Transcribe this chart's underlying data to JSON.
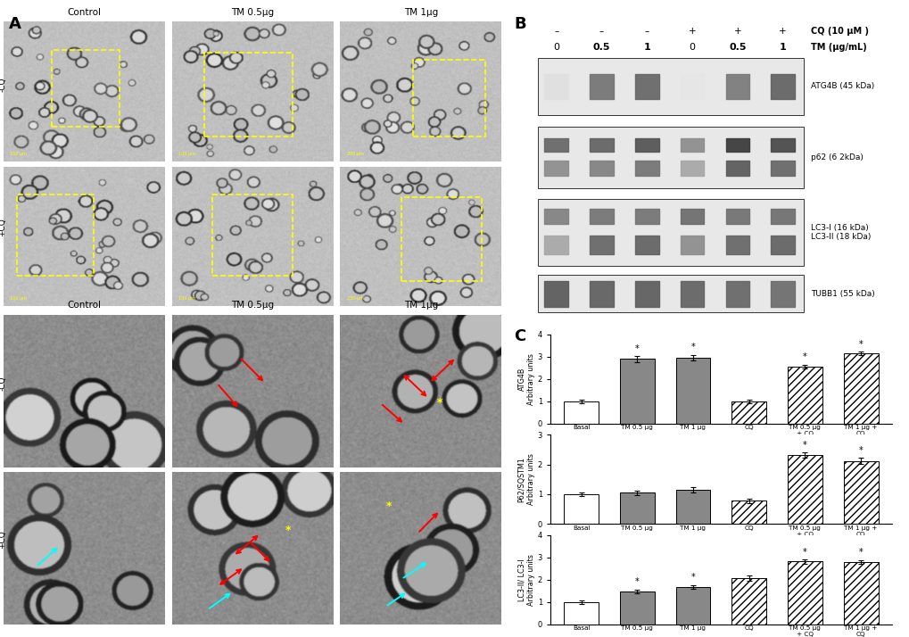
{
  "panel_labels": [
    "A",
    "B",
    "C"
  ],
  "micro_labels_top": [
    "Control",
    "TM 0.5μg",
    "TM 1μg"
  ],
  "wb_cq_row": [
    "–",
    "–",
    "–",
    "+",
    "+",
    "+"
  ],
  "wb_tm_row": [
    "0",
    "0.5",
    "1",
    "0",
    "0.5",
    "1"
  ],
  "cq_label": "CQ (10 μM )",
  "tm_label": "TM (μg/mL)",
  "atg4b_ylabel": "ATG4B\nArbitrary units",
  "p62_ylabel": "P62/SQSTM1\nArbitrary units",
  "lc3_ylabel": "LC3-II/ LC3-I\nArbitrary units",
  "atg4b_values": [
    1.0,
    2.9,
    2.95,
    1.0,
    2.55,
    3.15
  ],
  "atg4b_errors": [
    0.08,
    0.13,
    0.13,
    0.08,
    0.1,
    0.08
  ],
  "atg4b_sig": [
    false,
    true,
    true,
    false,
    true,
    true
  ],
  "p62_values": [
    1.0,
    1.05,
    1.15,
    0.78,
    2.32,
    2.12
  ],
  "p62_errors": [
    0.07,
    0.07,
    0.09,
    0.07,
    0.09,
    0.1
  ],
  "p62_sig": [
    false,
    false,
    false,
    false,
    true,
    true
  ],
  "lc3_values": [
    1.0,
    1.48,
    1.68,
    2.08,
    2.82,
    2.8
  ],
  "lc3_errors": [
    0.07,
    0.09,
    0.09,
    0.11,
    0.09,
    0.09
  ],
  "lc3_sig": [
    false,
    true,
    true,
    false,
    true,
    true
  ],
  "atg4b_ylim": [
    0,
    4
  ],
  "p62_ylim": [
    0,
    3
  ],
  "lc3_ylim": [
    0,
    4
  ],
  "bg_color": "#ffffff",
  "bar_colors": [
    "white",
    "#888888",
    "#888888",
    "white",
    "white",
    "white"
  ],
  "bar_hatch": [
    null,
    null,
    null,
    "////",
    "////",
    "////"
  ]
}
